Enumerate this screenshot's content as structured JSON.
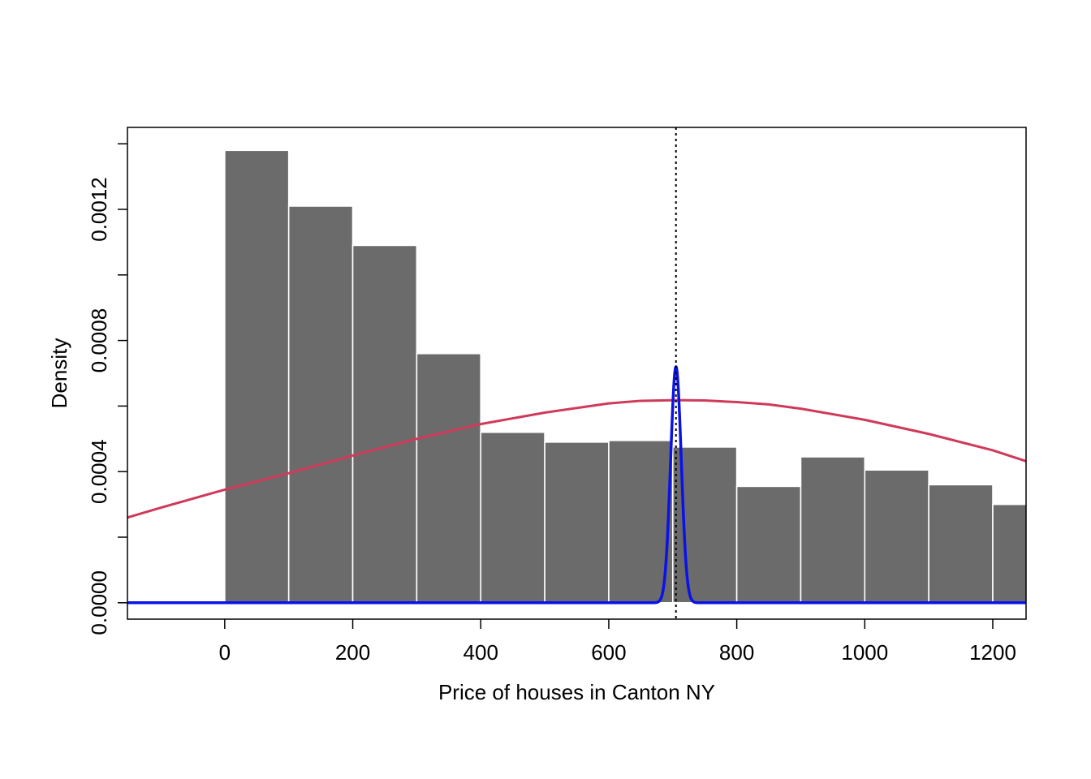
{
  "chart_data": {
    "type": "bar",
    "title": "",
    "xlabel": "Price of houses in Canton NY",
    "ylabel": "Density",
    "xlim": [
      -152,
      1252
    ],
    "ylim": [
      -5e-05,
      0.00145
    ],
    "x_ticks": [
      0,
      200,
      400,
      600,
      800,
      1000,
      1200
    ],
    "x_tick_labels": [
      "0",
      "200",
      "400",
      "600",
      "800",
      "1000",
      "1200"
    ],
    "y_ticks": [
      0,
      0.0002,
      0.0004,
      0.0006,
      0.0008,
      0.001,
      0.0012,
      0.0014
    ],
    "y_tick_labels": [
      "0.0000",
      "",
      "0.0004",
      "",
      "0.0008",
      "",
      "0.0012",
      ""
    ],
    "grid": false,
    "histogram": {
      "bin_edges": [
        0,
        100,
        200,
        300,
        400,
        500,
        600,
        700,
        800,
        900,
        1000,
        1100,
        1200,
        1300
      ],
      "density": [
        0.00138,
        0.00121,
        0.00109,
        0.00076,
        0.00052,
        0.00049,
        0.000495,
        0.000475,
        0.000355,
        0.000445,
        0.000405,
        0.00036,
        0.0003
      ],
      "color": "#6b6b6b"
    },
    "series": [
      {
        "type": "line",
        "color": "#d03a5a",
        "x": [
          -152,
          -100,
          0,
          100,
          200,
          300,
          400,
          500,
          600,
          650,
          705,
          750,
          800,
          850,
          900,
          1000,
          1100,
          1200,
          1252
        ],
        "y": [
          0.00026,
          0.00029,
          0.000345,
          0.000395,
          0.000449,
          0.0005,
          0.000545,
          0.00058,
          0.000608,
          0.000616,
          0.000618,
          0.000617,
          0.000612,
          0.000605,
          0.000592,
          0.000558,
          0.000515,
          0.000465,
          0.000432
        ]
      },
      {
        "type": "line",
        "color": "#0a12e8",
        "curve": "normal",
        "mean": 705,
        "sd": 8.3,
        "peak": 0.00072
      }
    ],
    "reference_line": {
      "x": 705,
      "style": "dotted",
      "color": "#000000"
    }
  }
}
